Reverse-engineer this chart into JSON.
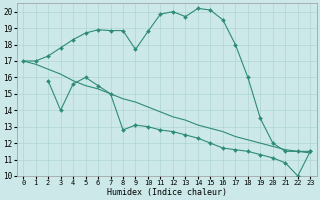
{
  "line1_x": [
    0,
    1,
    2,
    3,
    4,
    5,
    6,
    7,
    8,
    9,
    10,
    11,
    12,
    13,
    14,
    15,
    16,
    17,
    18,
    19,
    20,
    21,
    22,
    23
  ],
  "line1_y": [
    17.0,
    17.0,
    17.3,
    17.8,
    18.3,
    18.7,
    18.9,
    18.85,
    18.85,
    17.7,
    18.8,
    19.85,
    20.0,
    19.7,
    20.2,
    20.1,
    19.5,
    18.0,
    16.0,
    13.5,
    12.0,
    11.5,
    11.5,
    11.5
  ],
  "line2_x": [
    2,
    3,
    4,
    5,
    6,
    7,
    8,
    9,
    10,
    11,
    12,
    13,
    14,
    15,
    16,
    17,
    18,
    19,
    20,
    21,
    22,
    23
  ],
  "line2_y": [
    15.8,
    14.0,
    15.6,
    16.0,
    15.5,
    15.0,
    12.8,
    13.1,
    13.0,
    12.8,
    12.7,
    12.5,
    12.3,
    12.0,
    11.7,
    11.6,
    11.5,
    11.3,
    11.1,
    10.8,
    10.0,
    11.5
  ],
  "line3_x": [
    0,
    1,
    2,
    3,
    4,
    5,
    6,
    7,
    8,
    9,
    10,
    11,
    12,
    13,
    14,
    15,
    16,
    17,
    18,
    19,
    20,
    21,
    22,
    23
  ],
  "line3_y": [
    17.0,
    16.8,
    16.5,
    16.2,
    15.8,
    15.5,
    15.3,
    15.0,
    14.7,
    14.5,
    14.2,
    13.9,
    13.6,
    13.4,
    13.1,
    12.9,
    12.7,
    12.4,
    12.2,
    12.0,
    11.8,
    11.6,
    11.5,
    11.4
  ],
  "color": "#2e8b78",
  "bg_color": "#cce8e8",
  "grid_color": "#aed4d4",
  "xlabel": "Humidex (Indice chaleur)",
  "xlim": [
    -0.5,
    23.5
  ],
  "ylim": [
    10,
    20.5
  ],
  "yticks": [
    10,
    11,
    12,
    13,
    14,
    15,
    16,
    17,
    18,
    19,
    20
  ],
  "xticks": [
    0,
    1,
    2,
    3,
    4,
    5,
    6,
    7,
    8,
    9,
    10,
    11,
    12,
    13,
    14,
    15,
    16,
    17,
    18,
    19,
    20,
    21,
    22,
    23
  ]
}
